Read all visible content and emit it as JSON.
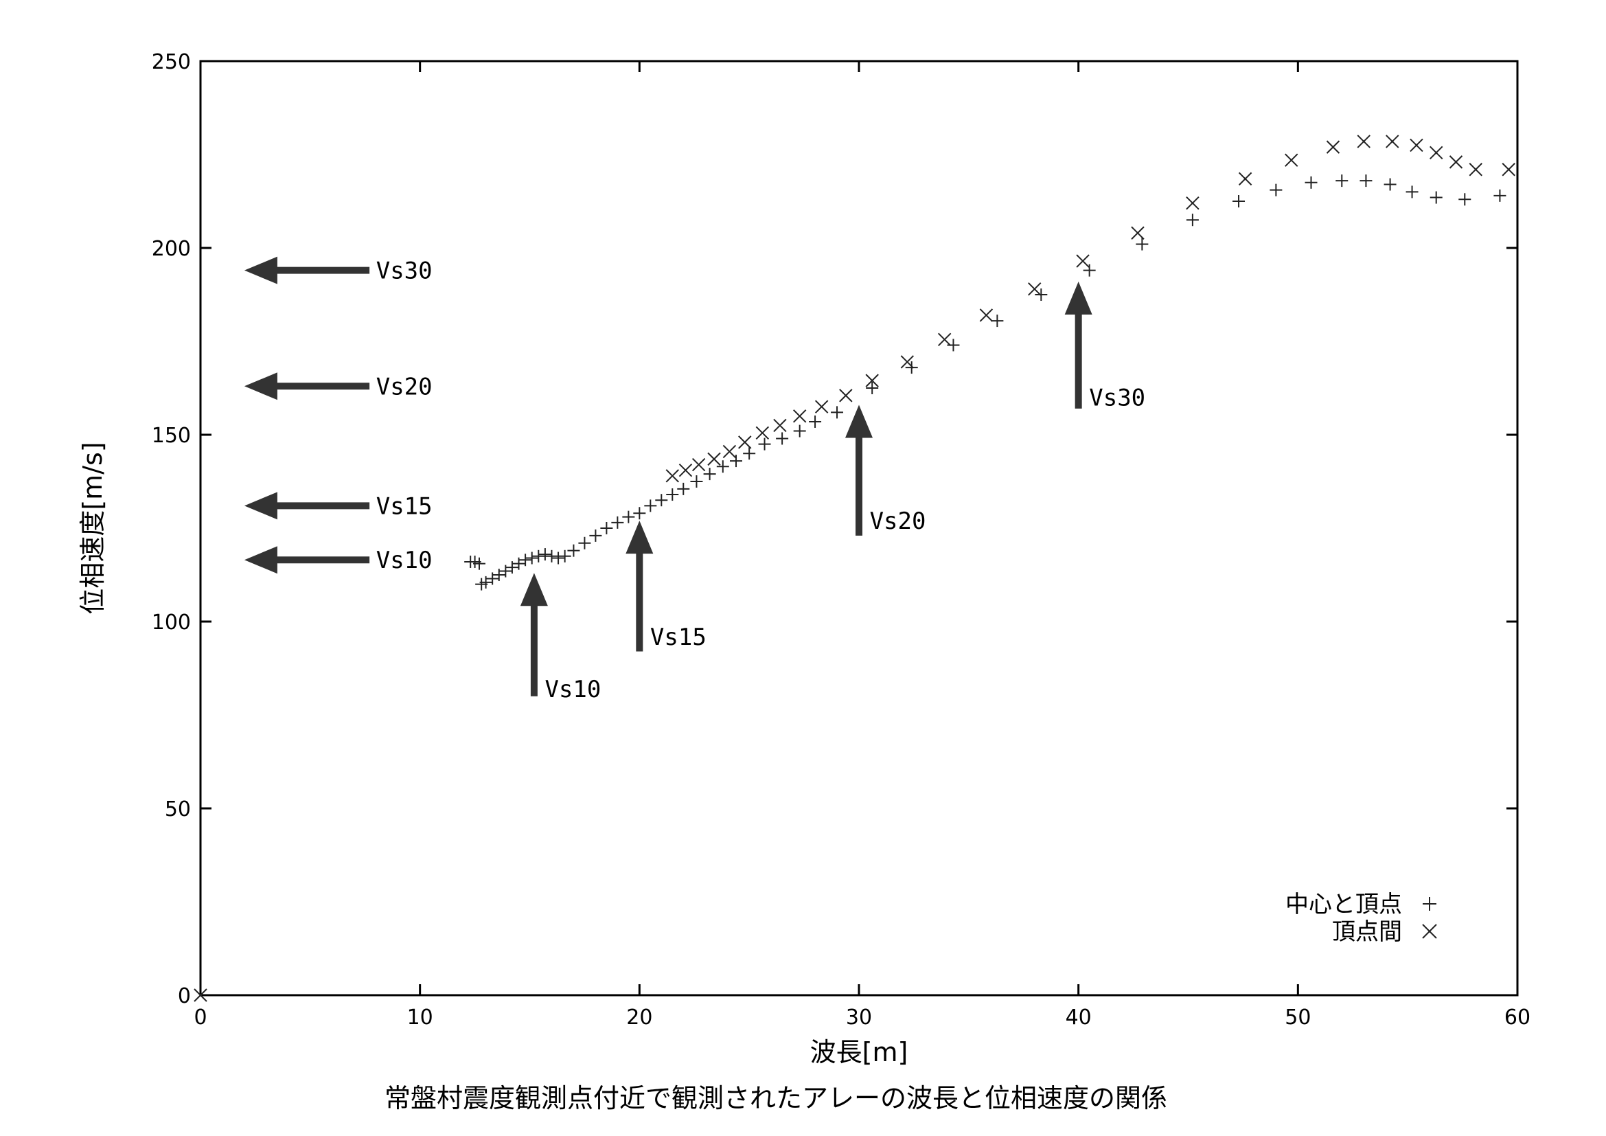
{
  "chart_data": {
    "type": "scatter",
    "caption": "常盤村震度観測点付近で観測されたアレーの波長と位相速度の関係",
    "xlabel": "波長[m]",
    "ylabel": "位相速度[m/s]",
    "xlim": [
      0,
      60
    ],
    "ylim": [
      0,
      250
    ],
    "xticks": [
      "0",
      "10",
      "20",
      "30",
      "40",
      "50",
      "60"
    ],
    "yticks": [
      "0",
      "50",
      "100",
      "150",
      "200",
      "250"
    ],
    "grid": false,
    "legend_position": "bottom-right",
    "series": [
      {
        "name": "中心と頂点",
        "marker": "plus",
        "points": [
          [
            12.3,
            116
          ],
          [
            12.5,
            116
          ],
          [
            12.7,
            115.5
          ],
          [
            12.8,
            110
          ],
          [
            13.0,
            110.5
          ],
          [
            13.3,
            111.5
          ],
          [
            13.6,
            112.5
          ],
          [
            13.9,
            113.5
          ],
          [
            14.2,
            114.5
          ],
          [
            14.5,
            115.5
          ],
          [
            14.8,
            116.5
          ],
          [
            15.1,
            117
          ],
          [
            15.4,
            117.5
          ],
          [
            15.7,
            118
          ],
          [
            16.0,
            117.5
          ],
          [
            16.3,
            117
          ],
          [
            16.6,
            117.5
          ],
          [
            17.0,
            119
          ],
          [
            17.5,
            121
          ],
          [
            18.0,
            123
          ],
          [
            18.5,
            125
          ],
          [
            19.0,
            126.5
          ],
          [
            19.5,
            128
          ],
          [
            20.0,
            129
          ],
          [
            20.5,
            131
          ],
          [
            21.0,
            132.5
          ],
          [
            21.5,
            134
          ],
          [
            22.0,
            135.5
          ],
          [
            22.6,
            137.5
          ],
          [
            23.2,
            139.5
          ],
          [
            23.8,
            141.5
          ],
          [
            24.4,
            143
          ],
          [
            25.0,
            145
          ],
          [
            25.7,
            147.5
          ],
          [
            26.5,
            149
          ],
          [
            27.3,
            151
          ],
          [
            28.0,
            153.5
          ],
          [
            29.0,
            156
          ],
          [
            30.6,
            162.5
          ],
          [
            32.4,
            168
          ],
          [
            34.3,
            174
          ],
          [
            36.3,
            180.5
          ],
          [
            38.3,
            187.5
          ],
          [
            40.5,
            194
          ],
          [
            42.9,
            201
          ],
          [
            45.2,
            207.5
          ],
          [
            47.3,
            212.5
          ],
          [
            49.0,
            215.5
          ],
          [
            50.6,
            217.5
          ],
          [
            52.0,
            218
          ],
          [
            53.1,
            218
          ],
          [
            54.2,
            217
          ],
          [
            55.2,
            215
          ],
          [
            56.3,
            213.5
          ],
          [
            57.6,
            213
          ],
          [
            59.2,
            214
          ]
        ]
      },
      {
        "name": "頂点間",
        "marker": "cross",
        "points": [
          [
            0.0,
            0
          ],
          [
            21.5,
            139
          ],
          [
            22.1,
            140.5
          ],
          [
            22.7,
            142
          ],
          [
            23.4,
            143.5
          ],
          [
            24.1,
            145.5
          ],
          [
            24.8,
            148
          ],
          [
            25.6,
            150.5
          ],
          [
            26.4,
            152.5
          ],
          [
            27.3,
            155
          ],
          [
            28.3,
            157.5
          ],
          [
            29.4,
            160.5
          ],
          [
            30.6,
            164.5
          ],
          [
            32.2,
            169.5
          ],
          [
            33.9,
            175.5
          ],
          [
            35.8,
            182
          ],
          [
            38.0,
            189
          ],
          [
            40.2,
            196.5
          ],
          [
            42.7,
            204
          ],
          [
            45.2,
            212
          ],
          [
            47.6,
            218.5
          ],
          [
            49.7,
            223.5
          ],
          [
            51.6,
            227
          ],
          [
            53.0,
            228.5
          ],
          [
            54.3,
            228.5
          ],
          [
            55.4,
            227.5
          ],
          [
            56.3,
            225.5
          ],
          [
            57.2,
            223
          ],
          [
            58.1,
            221
          ],
          [
            59.6,
            221
          ]
        ]
      }
    ],
    "annotations": [
      {
        "label": "Vs30",
        "direction": "left",
        "x": 2.0,
        "x_end": 7.7,
        "y": 194,
        "label_x": 8.0,
        "label_y": 194
      },
      {
        "label": "Vs20",
        "direction": "left",
        "x": 2.0,
        "x_end": 7.7,
        "y": 163,
        "label_x": 8.0,
        "label_y": 163
      },
      {
        "label": "Vs15",
        "direction": "left",
        "x": 2.0,
        "x_end": 7.7,
        "y": 131,
        "label_x": 8.0,
        "label_y": 131
      },
      {
        "label": "Vs10",
        "direction": "left",
        "x": 2.0,
        "x_end": 7.7,
        "y": 116.5,
        "label_x": 8.0,
        "label_y": 116.5
      },
      {
        "label": "Vs10",
        "direction": "up",
        "x": 15.2,
        "y": 113,
        "y_end": 80,
        "label_x": 15.5,
        "label_y": 82
      },
      {
        "label": "Vs15",
        "direction": "up",
        "x": 20.0,
        "y": 127,
        "y_end": 92,
        "label_x": 20.3,
        "label_y": 96
      },
      {
        "label": "Vs20",
        "direction": "up",
        "x": 30.0,
        "y": 158,
        "y_end": 123,
        "label_x": 30.3,
        "label_y": 127
      },
      {
        "label": "Vs30",
        "direction": "up",
        "x": 40.0,
        "y": 191,
        "y_end": 157,
        "label_x": 40.3,
        "label_y": 160
      }
    ]
  }
}
